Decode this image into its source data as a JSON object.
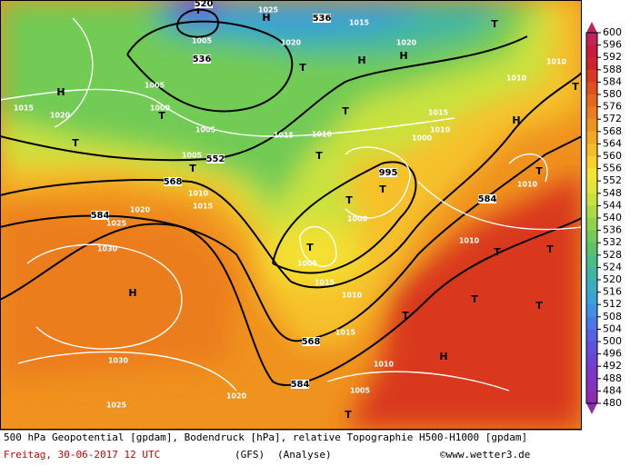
{
  "legend": {
    "levels": [
      600,
      596,
      592,
      588,
      584,
      580,
      576,
      572,
      568,
      564,
      560,
      556,
      552,
      548,
      544,
      540,
      536,
      532,
      528,
      524,
      520,
      516,
      512,
      508,
      504,
      500,
      496,
      492,
      488,
      484,
      480
    ],
    "colors": [
      "#c0245a",
      "#c81a3a",
      "#d0222a",
      "#d9381f",
      "#e04f1c",
      "#e6661c",
      "#ec7d1c",
      "#f0931e",
      "#f3a821",
      "#f6bd26",
      "#f8d12c",
      "#f5e233",
      "#e3e63a",
      "#c8e23e",
      "#aadb42",
      "#8ed348",
      "#72cb55",
      "#5bc46b",
      "#4abd86",
      "#3fb6a3",
      "#3aaec0",
      "#3aa2d8",
      "#3f8fe4",
      "#4a78e8",
      "#5561e6",
      "#6150e0",
      "#6e42d6",
      "#7b38cb",
      "#8630bf",
      "#8f2ab2"
    ]
  },
  "map_labels": [
    "T",
    "520",
    "H",
    "1025",
    "536",
    "1015",
    "1005",
    "1020",
    "536",
    "T",
    "H",
    "H",
    "T",
    "1020",
    "1010",
    "1010",
    "T",
    "H",
    "1015",
    "1020",
    "1005",
    "T",
    "1000",
    "1005",
    "T",
    "1015",
    "1010",
    "T",
    "1015",
    "1010",
    "H",
    "1000",
    "1005",
    "552",
    "T",
    "T",
    "568",
    "1010",
    "1015",
    "995",
    "T",
    "T",
    "1010",
    "584",
    "T",
    "1000",
    "584",
    "1025",
    "1020",
    "1030",
    "T",
    "1005",
    "1010",
    "T",
    "T",
    "H",
    "1015",
    "1010",
    "T",
    "T",
    "T",
    "568",
    "1015",
    "1030",
    "H",
    "1010",
    "584",
    "1005",
    "1020",
    "1025",
    "T"
  ],
  "footer": {
    "description": "500 hPa Geopotential [gpdam], Bodendruck [hPa], relative Topographie H500-H1000 [gpdam]",
    "date": "Freitag, 30-06-2017  12 UTC",
    "model": "(GFS)",
    "run_type": "(Analyse)",
    "credit": "©www.wetter3.de"
  }
}
